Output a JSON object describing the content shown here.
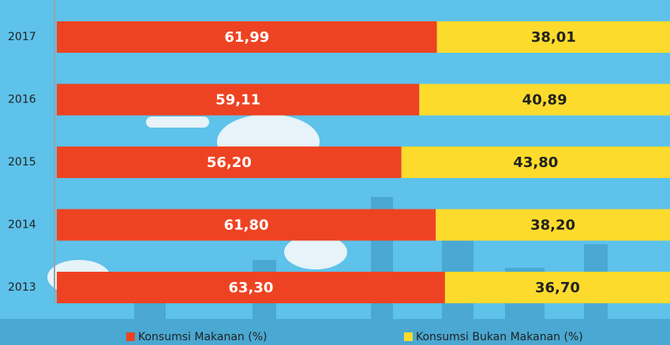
{
  "chart_data": {
    "type": "stacked-barh",
    "categories": [
      "2017",
      "2016",
      "2015",
      "2014",
      "2013"
    ],
    "series": [
      {
        "name": "Konsumsi Makanan (%)",
        "color": "#ee4322",
        "values": [
          61.99,
          59.11,
          56.2,
          61.8,
          63.3
        ],
        "value_labels": [
          "61,99",
          "59,11",
          "56,20",
          "61,80",
          "63,30"
        ]
      },
      {
        "name": "Konsumsi Bukan Makanan (%)",
        "color": "#fddb2c",
        "values": [
          38.01,
          40.89,
          43.8,
          38.2,
          36.7
        ],
        "value_labels": [
          "38,01",
          "40,89",
          "43,80",
          "38,20",
          "36,70"
        ]
      }
    ],
    "xlim": [
      0,
      100
    ]
  }
}
